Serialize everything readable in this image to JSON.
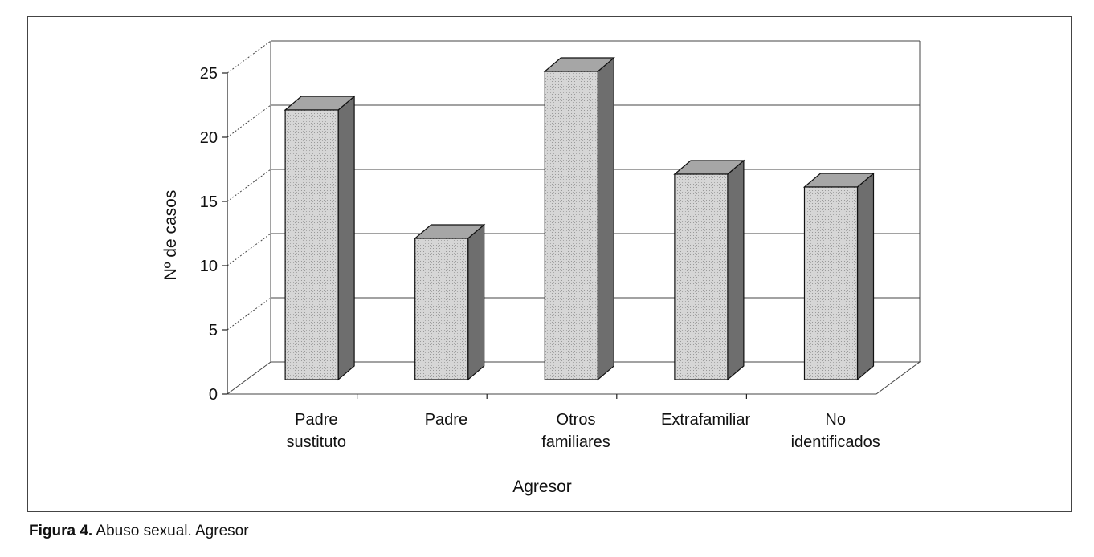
{
  "caption": {
    "label": "Figura 4.",
    "text": " Abuso sexual. Agresor"
  },
  "chart_data": {
    "type": "bar",
    "style": "3d-column",
    "categories": [
      [
        "Padre",
        "sustituto"
      ],
      [
        "Padre"
      ],
      [
        "Otros",
        "familiares"
      ],
      [
        "Extrafamiliar"
      ],
      [
        "No",
        "identificados"
      ]
    ],
    "values": [
      21,
      11,
      24,
      16,
      15
    ],
    "ylabel": "Nº de casos",
    "xlabel": "Agresor",
    "ylim": [
      0,
      25
    ],
    "yticks": [
      0,
      5,
      10,
      15,
      20,
      25
    ],
    "grid": true,
    "legend": "none",
    "colors": {
      "bar_front": "#d0d0d0",
      "bar_side": "#6e6e6e",
      "bar_top": "#a6a6a6",
      "grid": "#444444"
    }
  }
}
